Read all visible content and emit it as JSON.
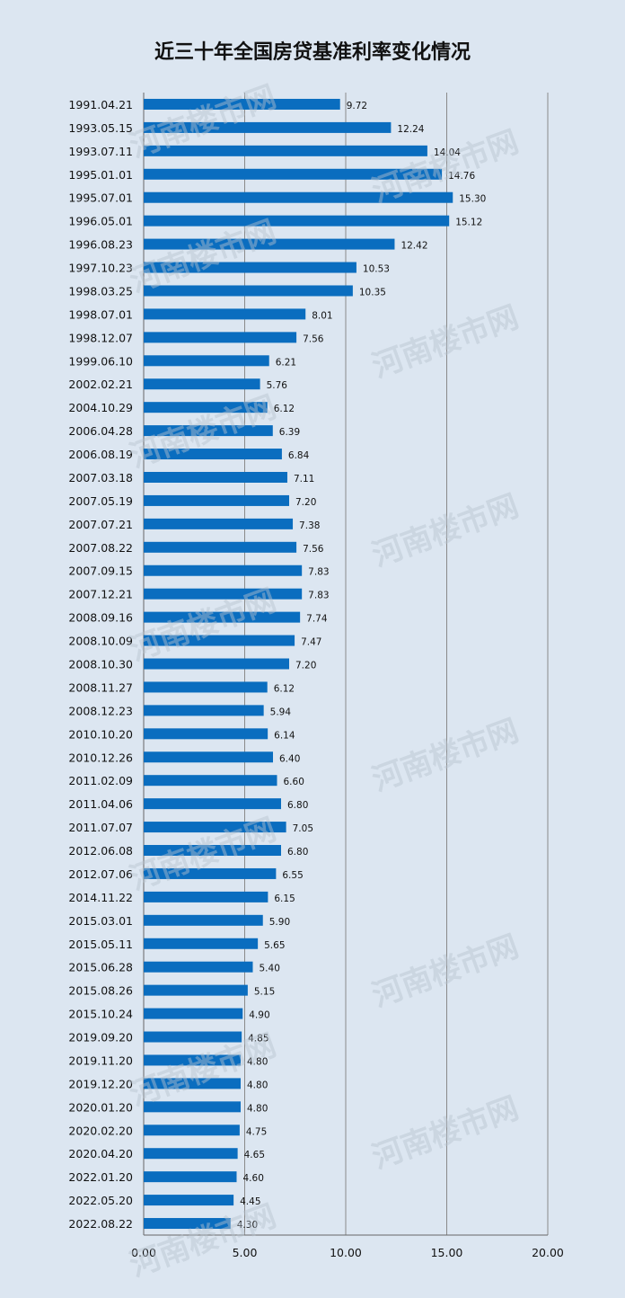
{
  "chart_data": {
    "type": "bar",
    "orientation": "horizontal",
    "title": "近三十年全国房贷基准利率变化情况",
    "xlim": [
      0,
      20
    ],
    "xticks": [
      "0.00",
      "5.00",
      "10.00",
      "15.00",
      "20.00"
    ],
    "grid": true,
    "bar_color": "#0a6dbf",
    "categories": [
      "1991.04.21",
      "1993.05.15",
      "1993.07.11",
      "1995.01.01",
      "1995.07.01",
      "1996.05.01",
      "1996.08.23",
      "1997.10.23",
      "1998.03.25",
      "1998.07.01",
      "1998.12.07",
      "1999.06.10",
      "2002.02.21",
      "2004.10.29",
      "2006.04.28",
      "2006.08.19",
      "2007.03.18",
      "2007.05.19",
      "2007.07.21",
      "2007.08.22",
      "2007.09.15",
      "2007.12.21",
      "2008.09.16",
      "2008.10.09",
      "2008.10.30",
      "2008.11.27",
      "2008.12.23",
      "2010.10.20",
      "2010.12.26",
      "2011.02.09",
      "2011.04.06",
      "2011.07.07",
      "2012.06.08",
      "2012.07.06",
      "2014.11.22",
      "2015.03.01",
      "2015.05.11",
      "2015.06.28",
      "2015.08.26",
      "2015.10.24",
      "2019.09.20",
      "2019.11.20",
      "2019.12.20",
      "2020.01.20",
      "2020.02.20",
      "2020.04.20",
      "2022.01.20",
      "2022.05.20",
      "2022.08.22"
    ],
    "values": [
      9.72,
      12.24,
      14.04,
      14.76,
      15.3,
      15.12,
      12.42,
      10.53,
      10.35,
      8.01,
      7.56,
      6.21,
      5.76,
      6.12,
      6.39,
      6.84,
      7.11,
      7.2,
      7.38,
      7.56,
      7.83,
      7.83,
      7.74,
      7.47,
      7.2,
      6.12,
      5.94,
      6.14,
      6.4,
      6.6,
      6.8,
      7.05,
      6.8,
      6.55,
      6.15,
      5.9,
      5.65,
      5.4,
      5.15,
      4.9,
      4.85,
      4.8,
      4.8,
      4.8,
      4.75,
      4.65,
      4.6,
      4.45,
      4.3
    ],
    "value_labels": [
      "9.72",
      "12.24",
      "14.04",
      "14.76",
      "15.30",
      "15.12",
      "12.42",
      "10.53",
      "10.35",
      "8.01",
      "7.56",
      "6.21",
      "5.76",
      "6.12",
      "6.39",
      "6.84",
      "7.11",
      "7.20",
      "7.38",
      "7.56",
      "7.83",
      "7.83",
      "7.74",
      "7.47",
      "7.20",
      "6.12",
      "5.94",
      "6.14",
      "6.40",
      "6.60",
      "6.80",
      "7.05",
      "6.80",
      "6.55",
      "6.15",
      "5.90",
      "5.65",
      "5.40",
      "5.15",
      "4.90",
      "4.85",
      "4.80",
      "4.80",
      "4.80",
      "4.75",
      "4.65",
      "4.60",
      "4.45",
      "4.30"
    ]
  },
  "watermark": "河南楼市网"
}
